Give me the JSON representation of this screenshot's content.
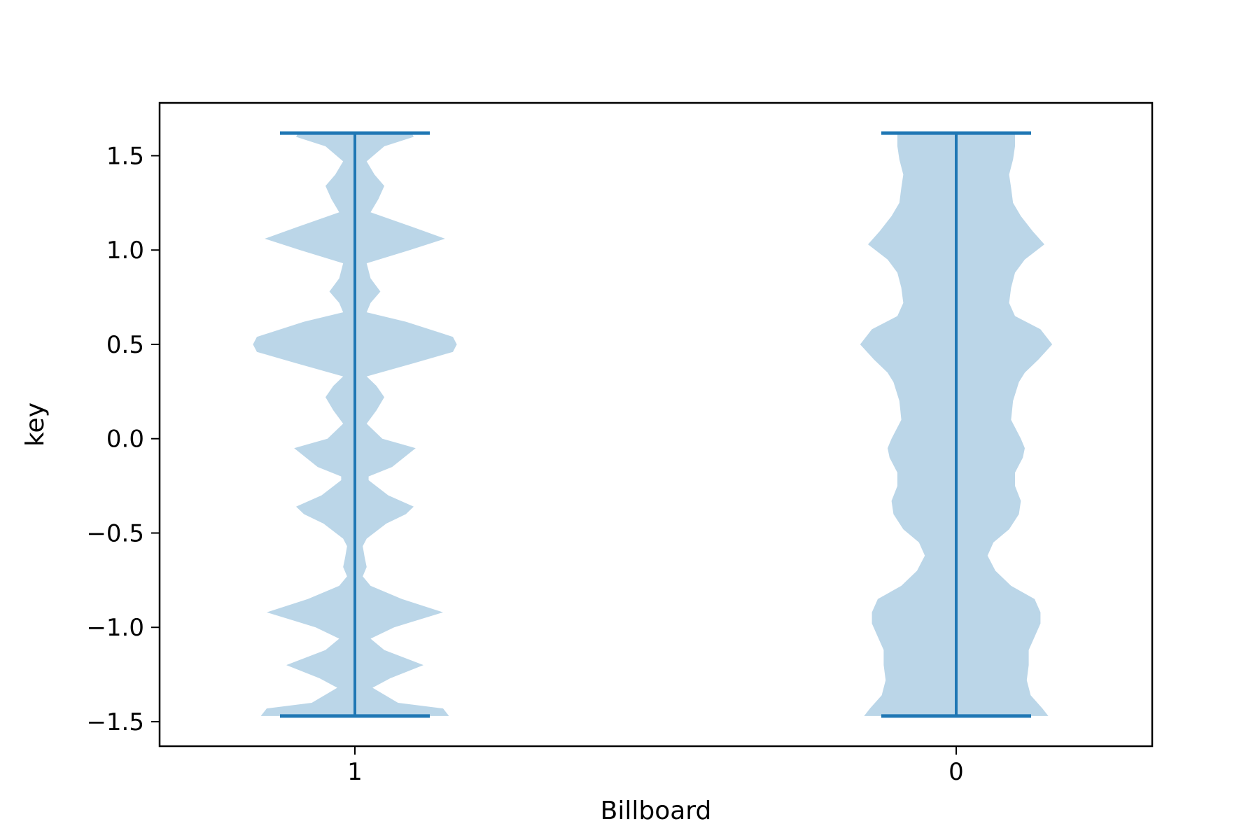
{
  "chart_data": {
    "type": "violin",
    "title": "",
    "xlabel": "Billboard",
    "ylabel": "key",
    "categories": [
      "1",
      "0"
    ],
    "ylim": [
      -1.63,
      1.78
    ],
    "yticks": [
      -1.5,
      -1.0,
      -0.5,
      0.0,
      0.5,
      1.0,
      1.5
    ],
    "ytick_labels": [
      "−1.5",
      "−1.0",
      "−0.5",
      "0.0",
      "0.5",
      "1.0",
      "1.5"
    ],
    "grid": false,
    "colors": {
      "body": "#bbd6e8",
      "lines": "#1f77b4",
      "axis": "#000000"
    },
    "violins": [
      {
        "category": "1",
        "min": -1.47,
        "max": 1.62,
        "density": [
          [
            -1.47,
            0.48
          ],
          [
            -1.43,
            0.45
          ],
          [
            -1.4,
            0.22
          ],
          [
            -1.32,
            0.09
          ],
          [
            -1.27,
            0.18
          ],
          [
            -1.2,
            0.35
          ],
          [
            -1.12,
            0.15
          ],
          [
            -1.06,
            0.08
          ],
          [
            -1.0,
            0.2
          ],
          [
            -0.92,
            0.45
          ],
          [
            -0.85,
            0.24
          ],
          [
            -0.78,
            0.08
          ],
          [
            -0.73,
            0.04
          ],
          [
            -0.68,
            0.06
          ],
          [
            -0.63,
            0.05
          ],
          [
            -0.57,
            0.04
          ],
          [
            -0.53,
            0.06
          ],
          [
            -0.45,
            0.16
          ],
          [
            -0.4,
            0.26
          ],
          [
            -0.36,
            0.3
          ],
          [
            -0.3,
            0.17
          ],
          [
            -0.22,
            0.07
          ],
          [
            -0.2,
            0.07
          ],
          [
            -0.15,
            0.19
          ],
          [
            -0.05,
            0.31
          ],
          [
            0.0,
            0.14
          ],
          [
            0.08,
            0.06
          ],
          [
            0.15,
            0.11
          ],
          [
            0.22,
            0.15
          ],
          [
            0.28,
            0.11
          ],
          [
            0.33,
            0.06
          ],
          [
            0.4,
            0.3
          ],
          [
            0.46,
            0.5
          ],
          [
            0.5,
            0.52
          ],
          [
            0.54,
            0.5
          ],
          [
            0.62,
            0.26
          ],
          [
            0.67,
            0.06
          ],
          [
            0.72,
            0.08
          ],
          [
            0.78,
            0.13
          ],
          [
            0.85,
            0.08
          ],
          [
            0.93,
            0.06
          ],
          [
            1.0,
            0.28
          ],
          [
            1.06,
            0.46
          ],
          [
            1.12,
            0.3
          ],
          [
            1.2,
            0.08
          ],
          [
            1.27,
            0.12
          ],
          [
            1.34,
            0.15
          ],
          [
            1.4,
            0.1
          ],
          [
            1.47,
            0.06
          ],
          [
            1.55,
            0.15
          ],
          [
            1.6,
            0.3
          ],
          [
            1.62,
            0.29
          ]
        ]
      },
      {
        "category": "0",
        "min": -1.47,
        "max": 1.62,
        "density": [
          [
            -1.47,
            0.47
          ],
          [
            -1.43,
            0.44
          ],
          [
            -1.36,
            0.38
          ],
          [
            -1.28,
            0.36
          ],
          [
            -1.2,
            0.37
          ],
          [
            -1.12,
            0.37
          ],
          [
            -1.05,
            0.4
          ],
          [
            -0.98,
            0.43
          ],
          [
            -0.92,
            0.43
          ],
          [
            -0.85,
            0.4
          ],
          [
            -0.78,
            0.28
          ],
          [
            -0.7,
            0.2
          ],
          [
            -0.62,
            0.16
          ],
          [
            -0.55,
            0.19
          ],
          [
            -0.48,
            0.27
          ],
          [
            -0.4,
            0.32
          ],
          [
            -0.33,
            0.33
          ],
          [
            -0.25,
            0.3
          ],
          [
            -0.18,
            0.3
          ],
          [
            -0.1,
            0.34
          ],
          [
            -0.05,
            0.35
          ],
          [
            0.0,
            0.33
          ],
          [
            0.1,
            0.28
          ],
          [
            0.2,
            0.29
          ],
          [
            0.3,
            0.32
          ],
          [
            0.35,
            0.35
          ],
          [
            0.42,
            0.42
          ],
          [
            0.5,
            0.49
          ],
          [
            0.58,
            0.43
          ],
          [
            0.65,
            0.3
          ],
          [
            0.72,
            0.27
          ],
          [
            0.8,
            0.28
          ],
          [
            0.88,
            0.3
          ],
          [
            0.95,
            0.35
          ],
          [
            1.03,
            0.45
          ],
          [
            1.1,
            0.39
          ],
          [
            1.18,
            0.33
          ],
          [
            1.25,
            0.29
          ],
          [
            1.33,
            0.28
          ],
          [
            1.4,
            0.27
          ],
          [
            1.48,
            0.29
          ],
          [
            1.55,
            0.3
          ],
          [
            1.6,
            0.3
          ],
          [
            1.62,
            0.3
          ]
        ]
      }
    ]
  }
}
